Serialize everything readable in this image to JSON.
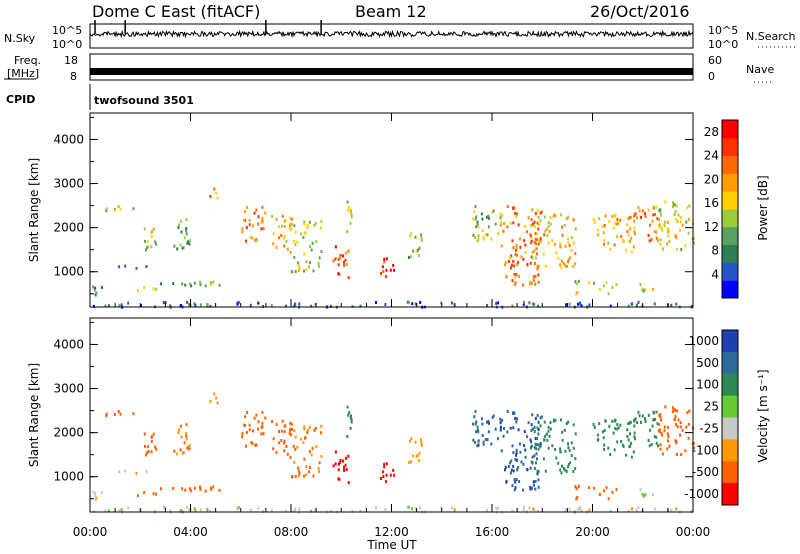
{
  "header": {
    "station": "Dome C East (fitACF)",
    "beam": "Beam 12",
    "date": "26/Oct/2016"
  },
  "panels": {
    "nsky_label": "N.Sky",
    "nsky_ticks": [
      "10^5",
      "10^0"
    ],
    "nsearch_label": "N.Search",
    "nsearch_ticks": [
      "10^5",
      "10^0"
    ],
    "freq_label_1": "Freq.",
    "freq_label_2": "[MHz]",
    "freq_ticks": [
      "18",
      "8"
    ],
    "nave_label": "Nave",
    "nave_ticks": [
      "60",
      "0"
    ],
    "cpid_label": "CPID",
    "cpid_value": "twofsound 3501"
  },
  "colors": {
    "power": [
      "#0000ff",
      "#2a55c8",
      "#2e7d55",
      "#5aa060",
      "#9ccc3c",
      "#ffd000",
      "#ff9c00",
      "#ff6a00",
      "#ff3300",
      "#ff0000"
    ],
    "velocity": [
      "#ff0000",
      "#ff6000",
      "#ff9a00",
      "#c8c8c8",
      "#66cc33",
      "#2e8a55",
      "#2e6a9a",
      "#2040b0"
    ]
  },
  "chart_data": [
    {
      "type": "heatmap",
      "name": "power",
      "ylabel": "Slant Range [km]",
      "yticks": [
        "1000",
        "2000",
        "3000",
        "4000"
      ],
      "ylim": [
        200,
        4600
      ],
      "xlim_hours": [
        0,
        24
      ],
      "colorbar_label": "Power [dB]",
      "colorbar_ticks": [
        "4",
        "8",
        "12",
        "16",
        "20",
        "24",
        "28"
      ],
      "colorbar_range": [
        0,
        30
      ]
    },
    {
      "type": "heatmap",
      "name": "velocity",
      "ylabel": "Slant Range [km]",
      "yticks": [
        "1000",
        "2000",
        "3000",
        "4000"
      ],
      "ylim": [
        200,
        4600
      ],
      "xlim_hours": [
        0,
        24
      ],
      "colorbar_label": "Velocity [m s⁻¹]",
      "colorbar_ticks": [
        "1000",
        "500",
        "100",
        "25",
        "-25",
        "-100",
        "-500",
        "-1000"
      ]
    }
  ],
  "xaxis": {
    "ticks": [
      "00:00",
      "04:00",
      "08:00",
      "12:00",
      "16:00",
      "20:00",
      "00:00"
    ],
    "label": "Time UT"
  },
  "scatter_regions": [
    {
      "t0": 0.0,
      "t1": 0.5,
      "r0": 400,
      "r1": 700,
      "p": 8,
      "v": -10
    },
    {
      "t0": 0.2,
      "t1": 2.5,
      "r0": 1080,
      "r1": 1140,
      "p": 6,
      "v": -5
    },
    {
      "t0": 0.6,
      "t1": 1.8,
      "r0": 2350,
      "r1": 2500,
      "p": 14,
      "v": -200
    },
    {
      "t0": 1.8,
      "t1": 2.6,
      "r0": 550,
      "r1": 680,
      "p": 16,
      "v": -200
    },
    {
      "t0": 2.0,
      "t1": 2.6,
      "r0": 1500,
      "r1": 2100,
      "p": 14,
      "v": -200
    },
    {
      "t0": 3.3,
      "t1": 4.0,
      "r0": 1500,
      "r1": 2200,
      "p": 10,
      "v": -100
    },
    {
      "t0": 2.7,
      "t1": 5.3,
      "r0": 650,
      "r1": 780,
      "p": 12,
      "v": -300
    },
    {
      "t0": 4.7,
      "t1": 5.2,
      "r0": 2500,
      "r1": 2950,
      "p": 20,
      "v": -50
    },
    {
      "t0": 6.0,
      "t1": 7.0,
      "r0": 1700,
      "r1": 2500,
      "p": 22,
      "v": -200
    },
    {
      "t0": 7.2,
      "t1": 8.0,
      "r0": 1400,
      "r1": 2300,
      "p": 18,
      "v": -200
    },
    {
      "t0": 8.0,
      "t1": 9.2,
      "r0": 1000,
      "r1": 2200,
      "p": 14,
      "v": -100
    },
    {
      "t0": 9.6,
      "t1": 10.3,
      "r0": 800,
      "r1": 1600,
      "p": 24,
      "v": -800
    },
    {
      "t0": 10.1,
      "t1": 10.4,
      "r0": 1900,
      "r1": 2700,
      "p": 16,
      "v": 300
    },
    {
      "t0": 11.5,
      "t1": 12.1,
      "r0": 900,
      "r1": 1400,
      "p": 26,
      "v": -800
    },
    {
      "t0": 12.6,
      "t1": 13.2,
      "r0": 1300,
      "r1": 1900,
      "p": 12,
      "v": -50
    },
    {
      "t0": 15.2,
      "t1": 16.4,
      "r0": 1700,
      "r1": 2500,
      "p": 12,
      "v": 800
    },
    {
      "t0": 16.3,
      "t1": 18.0,
      "r0": 700,
      "r1": 2500,
      "p": 22,
      "v": 900
    },
    {
      "t0": 17.5,
      "t1": 19.3,
      "r0": 1100,
      "r1": 2300,
      "p": 18,
      "v": 300
    },
    {
      "t0": 19.2,
      "t1": 21.0,
      "r0": 500,
      "r1": 800,
      "p": 14,
      "v": -300
    },
    {
      "t0": 20.0,
      "t1": 21.7,
      "r0": 1400,
      "r1": 2300,
      "p": 18,
      "v": 200
    },
    {
      "t0": 21.6,
      "t1": 22.6,
      "r0": 1700,
      "r1": 2500,
      "p": 22,
      "v": 200
    },
    {
      "t0": 22.6,
      "t1": 24.0,
      "r0": 1500,
      "r1": 2600,
      "p": 16,
      "v": -300
    },
    {
      "t0": 21.8,
      "t1": 23.0,
      "r0": 550,
      "r1": 750,
      "p": 14,
      "v": 50
    },
    {
      "t0": 0.0,
      "t1": 24.0,
      "r0": 200,
      "r1": 320,
      "p": 6,
      "v": 0
    }
  ]
}
